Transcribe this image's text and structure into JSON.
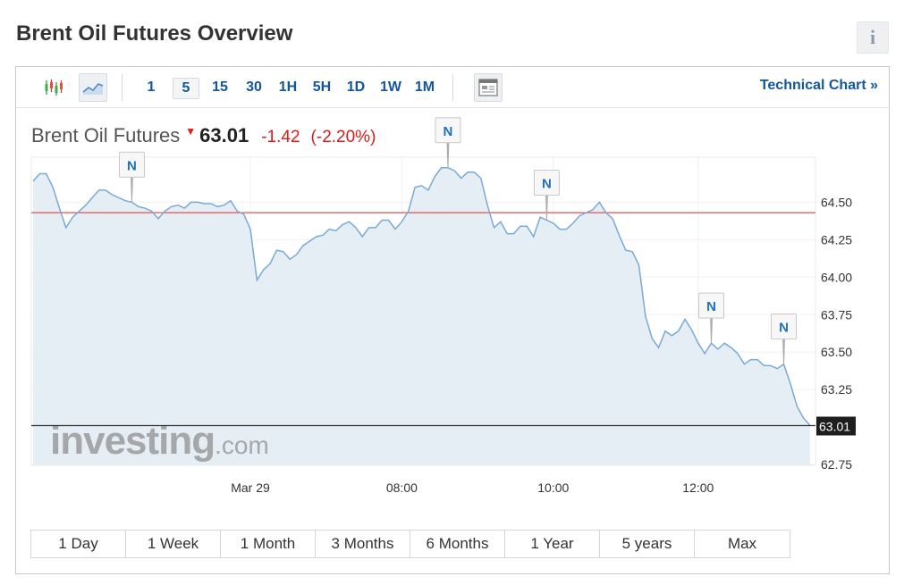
{
  "page": {
    "title": "Brent Oil Futures Overview",
    "info_label": "i"
  },
  "toolbar": {
    "intervals": [
      "1",
      "5",
      "15",
      "30",
      "1H",
      "5H",
      "1D",
      "1W",
      "1M"
    ],
    "active_interval": "5",
    "technical_chart_label": "Technical Chart »",
    "icons": [
      "candlestick-chart-icon",
      "line-chart-icon",
      "news-table-icon"
    ]
  },
  "quote": {
    "name": "Brent Oil Futures",
    "last": "63.01",
    "change": "-1.42",
    "change_pct": "(-2.20%)",
    "direction_icon": "down-arrow-icon"
  },
  "ranges": [
    "1 Day",
    "1 Week",
    "1 Month",
    "3 Months",
    "6 Months",
    "1 Year",
    "5 years",
    "Max"
  ],
  "watermark": {
    "brand": "investing",
    "suffix": ".com"
  },
  "colors": {
    "line": "#7aaad4",
    "area": "#e6eef5",
    "prev_close_line": "#e05050",
    "last_price_line": "#333333",
    "link": "#1256a0",
    "negative": "#e0191a"
  },
  "chart_data": {
    "type": "area",
    "x_tick_labels": [
      "Mar 29",
      "08:00",
      "10:00",
      "12:00"
    ],
    "x_tick_index": [
      33,
      56,
      79,
      101
    ],
    "y_ticks": [
      64.5,
      64.25,
      64.0,
      63.75,
      63.5,
      63.25,
      62.75
    ],
    "y_tick_labels": [
      "64.50",
      "64.25",
      "64.00",
      "63.75",
      "63.50",
      "63.25",
      "62.75"
    ],
    "ylim": [
      62.745,
      64.8
    ],
    "grid": true,
    "reference_lines": {
      "prev_close": 64.43,
      "last": 63.01
    },
    "last_label": "63.01",
    "news_marker_label": "N",
    "news_marker_index": [
      15,
      63,
      78,
      103,
      114
    ],
    "values": [
      64.64,
      64.69,
      64.69,
      64.6,
      64.46,
      64.33,
      64.4,
      64.44,
      64.48,
      64.53,
      64.58,
      64.58,
      64.55,
      64.53,
      64.51,
      64.5,
      64.47,
      64.46,
      64.44,
      64.39,
      64.44,
      64.47,
      64.48,
      64.46,
      64.5,
      64.5,
      64.49,
      64.49,
      64.47,
      64.48,
      64.51,
      64.44,
      64.42,
      64.32,
      63.98,
      64.05,
      64.09,
      64.18,
      64.17,
      64.12,
      64.15,
      64.21,
      64.24,
      64.27,
      64.28,
      64.32,
      64.31,
      64.35,
      64.37,
      64.33,
      64.27,
      64.33,
      64.33,
      64.38,
      64.38,
      64.32,
      64.37,
      64.44,
      64.6,
      64.61,
      64.58,
      64.67,
      64.73,
      64.73,
      64.71,
      64.66,
      64.7,
      64.7,
      64.66,
      64.48,
      64.33,
      64.37,
      64.29,
      64.29,
      64.34,
      64.34,
      64.27,
      64.4,
      64.38,
      64.36,
      64.32,
      64.32,
      64.36,
      64.41,
      64.43,
      64.45,
      64.5,
      64.43,
      64.39,
      64.28,
      64.18,
      64.17,
      64.08,
      63.74,
      63.59,
      63.53,
      63.64,
      63.61,
      63.64,
      63.72,
      63.65,
      63.56,
      63.49,
      63.56,
      63.52,
      63.56,
      63.53,
      63.49,
      63.42,
      63.45,
      63.45,
      63.41,
      63.41,
      63.39,
      63.42,
      63.29,
      63.14,
      63.06,
      63.01
    ]
  }
}
